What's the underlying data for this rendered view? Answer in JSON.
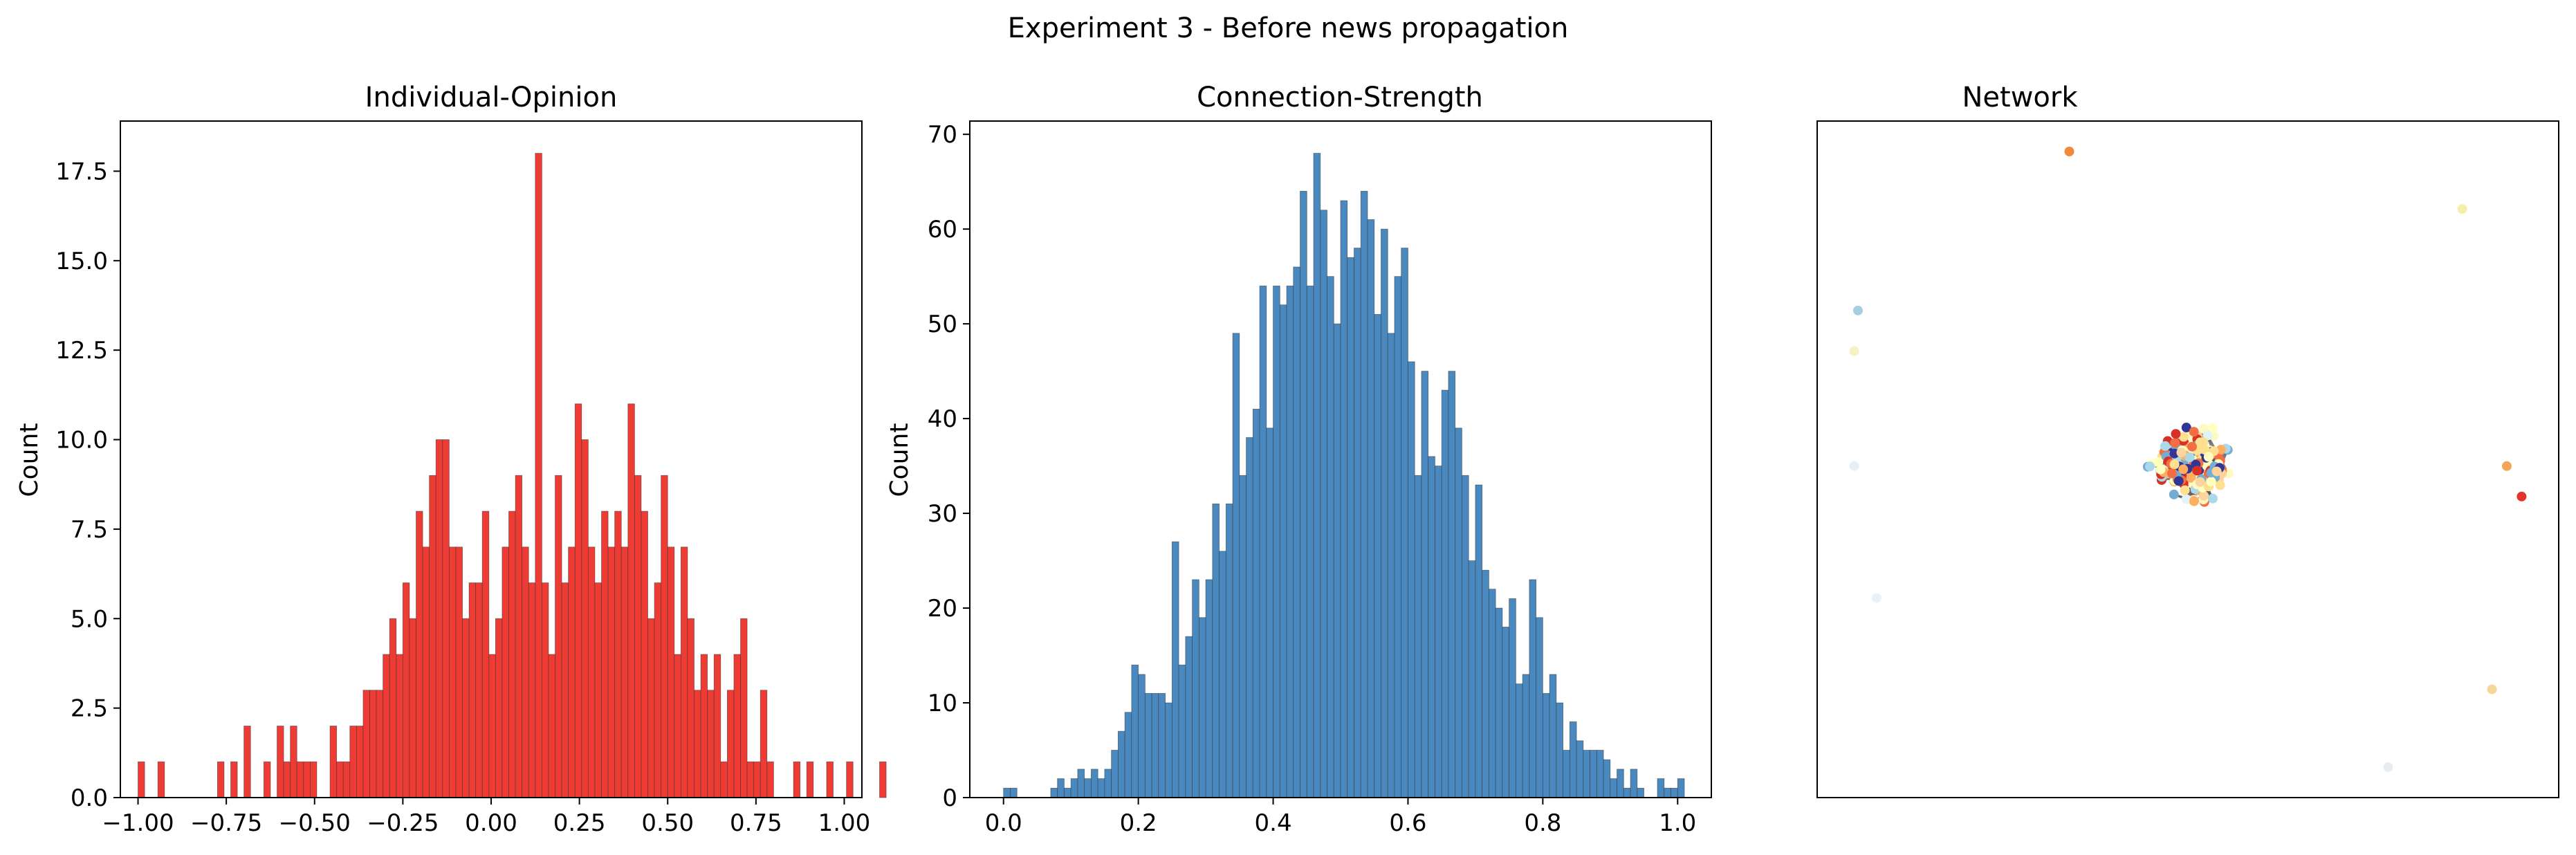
{
  "figure_title": "Experiment 3 - Before news propagation",
  "colors": {
    "opinion_bar": "#ee3b33",
    "strength_bar": "#4a89c0",
    "edge": "#555555"
  },
  "chart_data": [
    {
      "type": "bar",
      "title": "Individual-Opinion",
      "xlabel": "",
      "ylabel": "Count",
      "xlim": [
        -1.05,
        1.05
      ],
      "ylim": [
        0,
        18.9
      ],
      "xticks": [
        -1.0,
        -0.75,
        -0.5,
        -0.25,
        0.0,
        0.25,
        0.5,
        0.75,
        1.0
      ],
      "xtick_labels": [
        "−1.00",
        "−0.75",
        "−0.50",
        "−0.25",
        "0.00",
        "0.25",
        "0.50",
        "0.75",
        "1.00"
      ],
      "yticks": [
        0,
        2.5,
        5,
        7.5,
        10,
        12.5,
        15,
        17.5
      ],
      "ytick_labels": [
        "0.0",
        "2.5",
        "5.0",
        "7.5",
        "10.0",
        "12.5",
        "15.0",
        "17.5"
      ],
      "bin_start": -1.0,
      "bin_width": 0.01875,
      "values": [
        1,
        0,
        0,
        1,
        0,
        0,
        0,
        0,
        0,
        0,
        0,
        0,
        1,
        0,
        1,
        0,
        2,
        0,
        0,
        1,
        0,
        2,
        1,
        2,
        1,
        1,
        1,
        0,
        0,
        2,
        1,
        1,
        2,
        2,
        3,
        3,
        3,
        4,
        5,
        4,
        6,
        5,
        8,
        7,
        9,
        10,
        10,
        7,
        7,
        5,
        6,
        6,
        8,
        4,
        5,
        7,
        8,
        9,
        7,
        6,
        18,
        6,
        4,
        9,
        6,
        7,
        11,
        10,
        7,
        6,
        8,
        7,
        8,
        7,
        11,
        9,
        8,
        5,
        6,
        9,
        7,
        4,
        7,
        5,
        3,
        4,
        3,
        4,
        1,
        3,
        4,
        5,
        1,
        1,
        3,
        1,
        0,
        0,
        0,
        1,
        0,
        1,
        0,
        0,
        1,
        0,
        0,
        1,
        0,
        0,
        0,
        0,
        1
      ]
    },
    {
      "type": "bar",
      "title": "Connection-Strength",
      "xlabel": "",
      "ylabel": "Count",
      "xlim": [
        -0.05,
        1.05
      ],
      "ylim": [
        0,
        71.4
      ],
      "xticks": [
        0.0,
        0.2,
        0.4,
        0.6,
        0.8,
        1.0
      ],
      "xtick_labels": [
        "0.0",
        "0.2",
        "0.4",
        "0.6",
        "0.8",
        "1.0"
      ],
      "yticks": [
        0,
        10,
        20,
        30,
        40,
        50,
        60,
        70
      ],
      "ytick_labels": [
        "0",
        "10",
        "20",
        "30",
        "40",
        "50",
        "60",
        "70"
      ],
      "bin_start": 0.0,
      "bin_width": 0.01,
      "values": [
        1,
        1,
        0,
        0,
        0,
        0,
        0,
        1,
        2,
        1,
        2,
        3,
        2,
        3,
        2,
        3,
        5,
        7,
        9,
        14,
        13,
        11,
        11,
        11,
        10,
        27,
        14,
        17,
        23,
        19,
        23,
        31,
        26,
        31,
        49,
        34,
        38,
        41,
        54,
        39,
        54,
        52,
        54,
        56,
        64,
        54,
        68,
        62,
        55,
        50,
        63,
        57,
        58,
        64,
        61,
        51,
        60,
        49,
        55,
        58,
        46,
        34,
        45,
        36,
        35,
        43,
        45,
        39,
        34,
        25,
        33,
        24,
        22,
        20,
        18,
        21,
        12,
        13,
        23,
        19,
        11,
        13,
        10,
        5,
        8,
        6,
        5,
        5,
        5,
        4,
        2,
        3,
        1,
        3,
        1,
        0,
        0,
        2,
        1,
        1,
        2
      ]
    },
    {
      "type": "network",
      "title": "Network",
      "isolated_nodes": [
        {
          "x": 0.34,
          "y": 0.955,
          "color": "#f08a3c"
        },
        {
          "x": 0.87,
          "y": 0.87,
          "color": "#f4f0a8"
        },
        {
          "x": 0.055,
          "y": 0.72,
          "color": "#a6cde2"
        },
        {
          "x": 0.05,
          "y": 0.66,
          "color": "#f5f2c5"
        },
        {
          "x": 0.05,
          "y": 0.49,
          "color": "#e5eff5"
        },
        {
          "x": 0.93,
          "y": 0.49,
          "color": "#f3a55a"
        },
        {
          "x": 0.95,
          "y": 0.445,
          "color": "#e3342b"
        },
        {
          "x": 0.08,
          "y": 0.295,
          "color": "#eaf2f7"
        },
        {
          "x": 0.91,
          "y": 0.16,
          "color": "#f7d69a"
        },
        {
          "x": 0.77,
          "y": 0.045,
          "color": "#e8eef0"
        }
      ],
      "cluster": {
        "cx": 0.505,
        "cy": 0.49,
        "rx": 0.085,
        "ry": 0.095,
        "n_nodes": 220,
        "n_edges": 320
      },
      "node_palette": [
        "#fee090",
        "#fff8c0",
        "#abd9e9",
        "#e0f3f8",
        "#fdae61",
        "#f46d43",
        "#74add1",
        "#ffffbf",
        "#fdd49e",
        "#d73027",
        "#313695"
      ]
    }
  ]
}
